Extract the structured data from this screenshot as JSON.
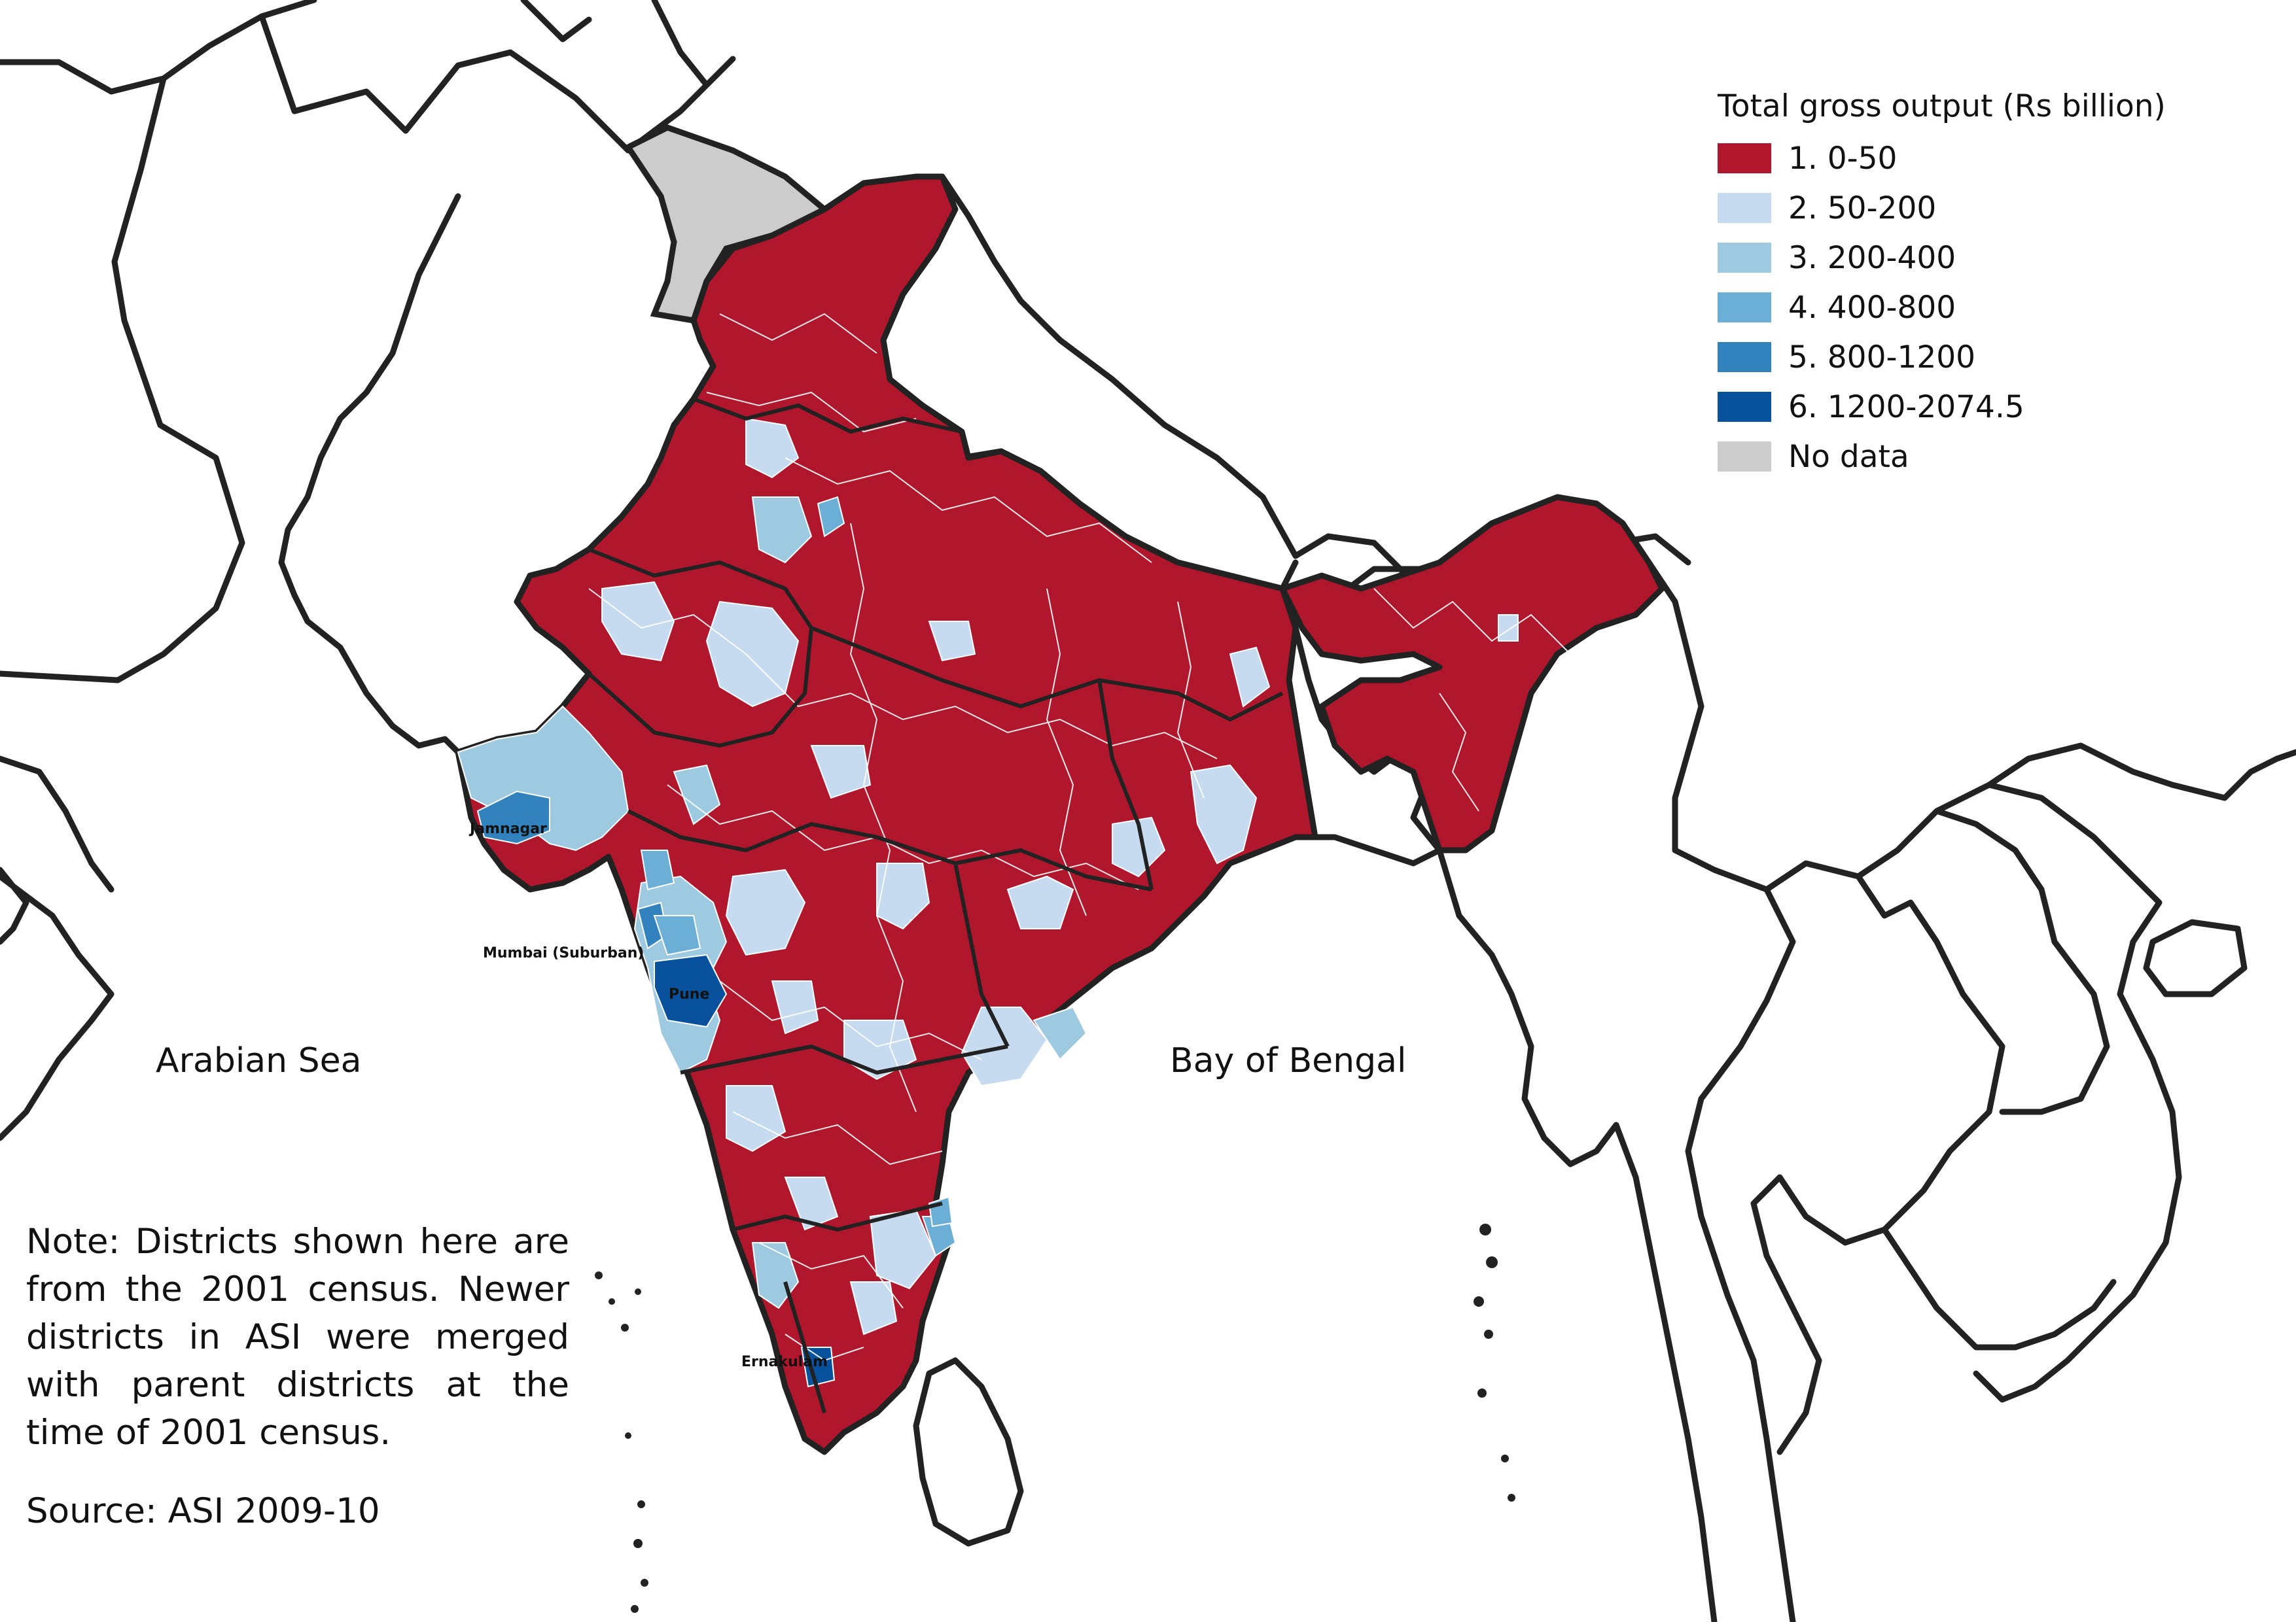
{
  "legend": {
    "title": "Total gross output (Rs billion)",
    "items": [
      {
        "label": "1. 0-50",
        "color": "#b0172c"
      },
      {
        "label": "2. 50-200",
        "color": "#c6dbef"
      },
      {
        "label": "3. 200-400",
        "color": "#9ecae1"
      },
      {
        "label": "4. 400-800",
        "color": "#6baed6"
      },
      {
        "label": "5. 800-1200",
        "color": "#3182bd"
      },
      {
        "label": "6. 1200-2074.5",
        "color": "#08519c"
      },
      {
        "label": "No data",
        "color": "#cccccc"
      }
    ]
  },
  "seas": {
    "arabian": "Arabian Sea",
    "bengal": "Bay of Bengal"
  },
  "cities": {
    "jamnagar": "Jamnagar",
    "mumbai": "Mumbai (Suburban)",
    "pune": "Pune",
    "ernakulam": "Ernakulam"
  },
  "note": "Note: Districts shown here are from the 2001 census. Newer districts in ASI were merged with parent districts at the time of 2001 census.",
  "source": "Source: ASI 2009-10"
}
